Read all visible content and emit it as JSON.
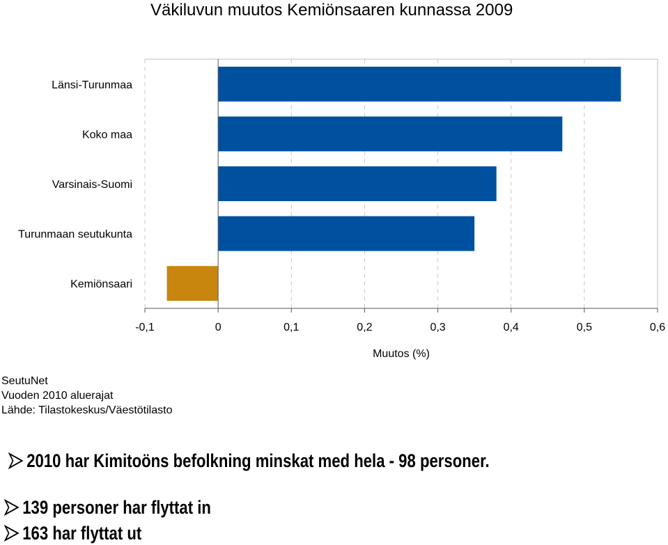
{
  "chart_data": {
    "type": "bar",
    "orientation": "horizontal",
    "title": "Väkiluvun muutos Kemiönsaaren kunnassa 2009",
    "xlabel": "Muutos (%)",
    "ylabel": "",
    "categories": [
      "Länsi-Turunmaa",
      "Koko maa",
      "Varsinais-Suomi",
      "Turunmaan seutukunta",
      "Kemiönsaari"
    ],
    "values": [
      0.55,
      0.47,
      0.38,
      0.35,
      -0.07
    ],
    "xlim": [
      -0.1,
      0.6
    ],
    "ticks": [
      -0.1,
      0,
      0.1,
      0.2,
      0.3,
      0.4,
      0.5,
      0.6
    ],
    "tick_labels": [
      "-0,1",
      "0",
      "0,1",
      "0,2",
      "0,3",
      "0,4",
      "0,5",
      "0,6"
    ],
    "grid": "vertical dashed",
    "colors": {
      "default": "#0050A0",
      "highlight": "#C8860F"
    },
    "highlight_category": "Kemiönsaari"
  },
  "source": {
    "line1": "SeutuNet",
    "line2": "Vuoden 2010 aluerajat",
    "line3": "Lähde: Tilastokeskus/Väestötilasto"
  },
  "bullets": [
    "2010 har Kimitoöns befolkning minskat med hela - 98 personer.",
    "139 personer har flyttat in",
    "163 har flyttat ut"
  ],
  "icons": {
    "bullet": "arrowhead-bullet-icon"
  }
}
